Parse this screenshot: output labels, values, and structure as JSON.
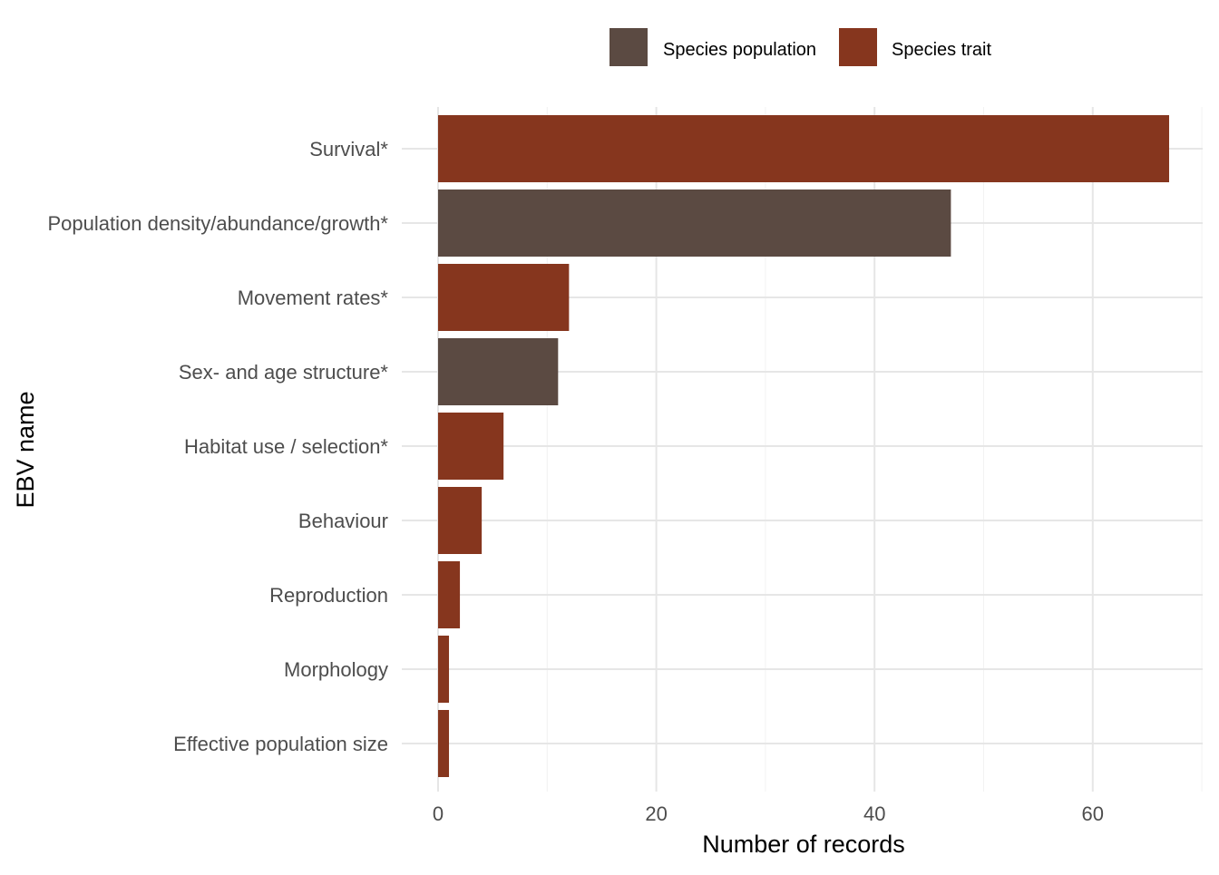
{
  "chart_data": {
    "type": "bar",
    "orientation": "horizontal",
    "xlabel": "Number of records",
    "ylabel": "EBV name",
    "xlim": [
      0,
      70
    ],
    "xticks": [
      0,
      20,
      40,
      60
    ],
    "grid": true,
    "legend_position": "top",
    "legend": [
      {
        "name": "Species population",
        "color": "#5b4a42"
      },
      {
        "name": "Species trait",
        "color": "#86361e"
      }
    ],
    "categories": [
      "Survival*",
      "Population density/abundance/growth*",
      "Movement rates*",
      "Sex- and age structure*",
      "Habitat use / selection*",
      "Behaviour",
      "Reproduction",
      "Morphology",
      "Effective population size"
    ],
    "values": [
      67,
      47,
      12,
      11,
      6,
      4,
      2,
      1,
      1
    ],
    "groups": [
      "Species trait",
      "Species population",
      "Species trait",
      "Species population",
      "Species trait",
      "Species trait",
      "Species trait",
      "Species trait",
      "Species trait"
    ]
  }
}
